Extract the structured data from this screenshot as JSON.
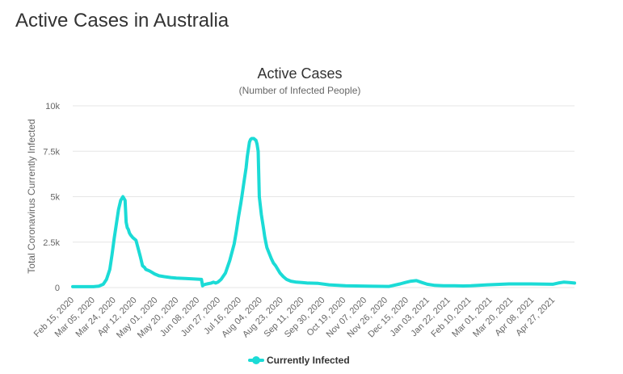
{
  "page": {
    "title": "Active Cases in Australia"
  },
  "colors": {
    "series": "#1bdbd6",
    "grid": "#e6e6e6",
    "text": "#333333",
    "muted": "#666666"
  },
  "chart_data": {
    "type": "line",
    "title": "Active Cases",
    "subtitle": "(Number of Infected People)",
    "xlabel": "",
    "ylabel": "Total Coronavirus Currently Infected",
    "ylim": [
      0,
      10000
    ],
    "y_ticks": [
      0,
      2500,
      5000,
      7500,
      10000
    ],
    "y_tick_labels": [
      "0",
      "2.5k",
      "5k",
      "7.5k",
      "10k"
    ],
    "x_ticks": [
      "Feb 15, 2020",
      "Mar 05, 2020",
      "Mar 24, 2020",
      "Apr 12, 2020",
      "May 01, 2020",
      "May 20, 2020",
      "Jun 08, 2020",
      "Jun 27, 2020",
      "Jul 16, 2020",
      "Aug 04, 2020",
      "Aug 23, 2020",
      "Sep 11, 2020",
      "Sep 30, 2020",
      "Oct 19, 2020",
      "Nov 07, 2020",
      "Nov 26, 2020",
      "Dec 15, 2020",
      "Jan 03, 2021",
      "Jan 22, 2021",
      "Feb 10, 2021",
      "Mar 01, 2021",
      "Mar 20, 2021",
      "Apr 08, 2021",
      "Apr 27, 2021"
    ],
    "x_range_days": [
      0,
      460
    ],
    "legend_position": "bottom-center",
    "grid": true,
    "series": [
      {
        "name": "Currently Infected",
        "x_days": [
          0,
          19,
          24,
          28,
          31,
          34,
          36,
          38,
          40,
          42,
          44,
          46,
          48,
          49,
          50,
          51,
          52,
          53,
          55,
          58,
          62,
          64,
          66,
          67,
          69,
          71,
          75,
          79,
          84,
          90,
          95,
          103,
          110,
          118,
          119,
          120,
          123,
          127,
          129,
          131,
          133,
          136,
          140,
          144,
          148,
          150,
          152,
          154,
          155,
          157,
          159,
          160,
          162,
          163,
          164,
          166,
          168,
          169,
          170,
          171,
          172,
          173,
          174,
          175,
          176,
          177,
          178,
          180,
          182,
          184,
          186,
          188,
          190,
          193,
          196,
          200,
          205,
          210,
          215,
          225,
          235,
          250,
          270,
          290,
          300,
          305,
          310,
          315,
          320,
          325,
          332,
          340,
          350,
          358,
          365,
          380,
          400,
          420,
          440,
          445,
          450,
          455,
          460
        ],
        "values": [
          50,
          50,
          80,
          180,
          450,
          1000,
          1800,
          2700,
          3500,
          4300,
          4800,
          5000,
          4800,
          3600,
          3300,
          3200,
          3000,
          2900,
          2750,
          2600,
          1700,
          1200,
          1100,
          1000,
          950,
          900,
          750,
          650,
          600,
          550,
          520,
          500,
          480,
          450,
          100,
          150,
          200,
          250,
          300,
          250,
          300,
          450,
          800,
          1500,
          2400,
          3100,
          3900,
          4600,
          5000,
          5800,
          6600,
          7200,
          8000,
          8150,
          8200,
          8200,
          8100,
          7900,
          7500,
          5000,
          4500,
          4000,
          3600,
          3200,
          2800,
          2500,
          2200,
          1900,
          1600,
          1350,
          1200,
          1000,
          800,
          600,
          450,
          350,
          300,
          280,
          250,
          230,
          150,
          100,
          80,
          60,
          200,
          280,
          350,
          380,
          280,
          180,
          120,
          100,
          100,
          90,
          100,
          150,
          200,
          200,
          180,
          250,
          300,
          280,
          250
        ]
      }
    ]
  }
}
